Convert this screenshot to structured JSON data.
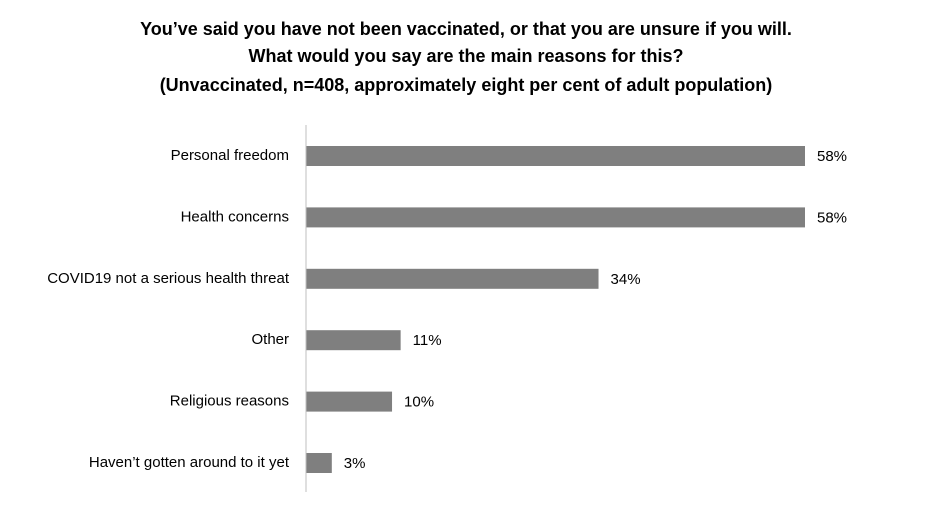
{
  "chart_data": {
    "type": "bar",
    "orientation": "horizontal",
    "title": [
      "You’ve said you have not been vaccinated, or that you are unsure if you will.",
      "What would you say are the main reasons for this?"
    ],
    "subtitle": "(Unvaccinated, n=408, approximately eight per cent of adult population)",
    "categories": [
      "Personal freedom",
      "Health concerns",
      "COVID19 not a serious health threat",
      "Other",
      "Religious reasons",
      "Haven’t gotten around to it yet"
    ],
    "values": [
      58,
      58,
      34,
      11,
      10,
      3
    ],
    "value_labels": [
      "58%",
      "58%",
      "34%",
      "11%",
      "10%",
      "3%"
    ],
    "color": "#7f7f7f"
  }
}
